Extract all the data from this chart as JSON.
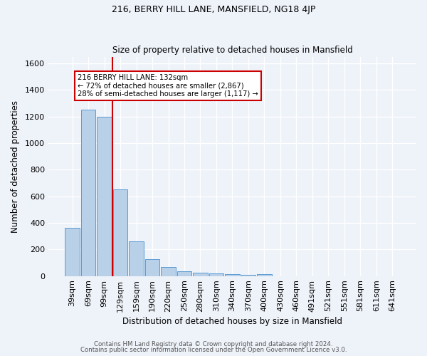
{
  "title1": "216, BERRY HILL LANE, MANSFIELD, NG18 4JP",
  "title2": "Size of property relative to detached houses in Mansfield",
  "xlabel": "Distribution of detached houses by size in Mansfield",
  "ylabel": "Number of detached properties",
  "footnote1": "Contains HM Land Registry data © Crown copyright and database right 2024.",
  "footnote2": "Contains public sector information licensed under the Open Government Licence v3.0.",
  "bar_labels": [
    "39sqm",
    "69sqm",
    "99sqm",
    "129sqm",
    "159sqm",
    "190sqm",
    "220sqm",
    "250sqm",
    "280sqm",
    "310sqm",
    "340sqm",
    "370sqm",
    "400sqm",
    "430sqm",
    "460sqm",
    "491sqm",
    "521sqm",
    "551sqm",
    "581sqm",
    "611sqm",
    "641sqm"
  ],
  "bar_values": [
    365,
    1250,
    1200,
    650,
    260,
    125,
    70,
    38,
    25,
    18,
    12,
    8,
    15,
    0,
    0,
    0,
    0,
    0,
    0,
    0,
    0
  ],
  "bar_color": "#b8d0e8",
  "bar_edge_color": "#5b9bd5",
  "highlight_bar_index": 3,
  "highlight_color": "#cc0000",
  "annotation_line1": "216 BERRY HILL LANE: 132sqm",
  "annotation_line2": "← 72% of detached houses are smaller (2,867)",
  "annotation_line3": "28% of semi-detached houses are larger (1,117) →",
  "ylim": [
    0,
    1650
  ],
  "yticks": [
    0,
    200,
    400,
    600,
    800,
    1000,
    1200,
    1400,
    1600
  ],
  "bg_color": "#eef2f9",
  "grid_color": "#ffffff",
  "annotation_box_facecolor": "#ffffff",
  "annotation_box_edgecolor": "#cc0000"
}
